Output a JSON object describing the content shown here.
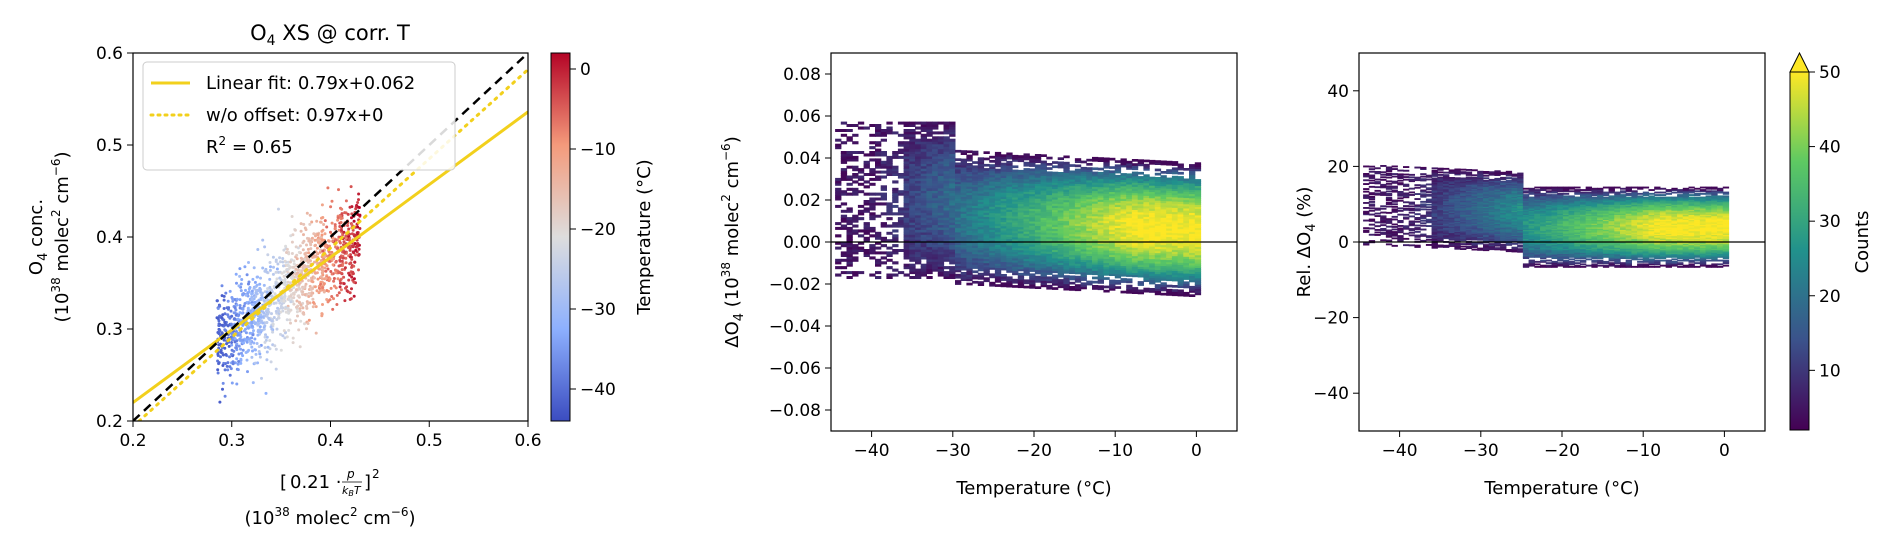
{
  "chart_data": [
    {
      "type": "scatter",
      "title_main": "O",
      "title_sub": "4",
      "title_rest": " XS @ corr. T",
      "xlabel_line2_pre": "(10",
      "xlabel_sup": "38",
      "xlabel_mid": " molec",
      "xlabel_sup2": "2",
      "xlabel_post": " cm",
      "xlabel_sup3": "−6",
      "xlabel_close": ")",
      "ylabel_line1": "O",
      "ylabel_line1_sub": "4",
      "ylabel_line1_rest": " conc.",
      "xlim": [
        0.2,
        0.6
      ],
      "ylim": [
        0.2,
        0.6
      ],
      "xticks": [
        "0.2",
        "0.3",
        "0.4",
        "0.5",
        "0.6"
      ],
      "yticks": [
        "0.2",
        "0.3",
        "0.4",
        "0.5",
        "0.6"
      ],
      "colorbar": {
        "label": "Temperature (°C)",
        "range": [
          -44,
          2
        ],
        "ticks": [
          "0",
          "−10",
          "−20",
          "−30",
          "−40"
        ],
        "tick_values": [
          0,
          -10,
          -20,
          -30,
          -40
        ],
        "colormap": "coolwarm"
      },
      "legend": {
        "position": "top-left",
        "entries": [
          {
            "label": "Linear fit:   0.79x+0.062",
            "style": "solid",
            "color": "#f2d01c"
          },
          {
            "label": "w/o offset: 0.97x+0",
            "style": "dotted",
            "color": "#f2d01c"
          }
        ],
        "r2_label": "R",
        "r2_sup": "2",
        "r2_value": " = 0.65"
      },
      "lines": [
        {
          "name": "Linear fit",
          "slope": 0.79,
          "intercept": 0.062,
          "color": "#f2d01c",
          "style": "solid"
        },
        {
          "name": "w/o offset",
          "slope": 0.97,
          "intercept": 0.0,
          "color": "#f2d01c",
          "style": "dotted"
        },
        {
          "name": "1:1",
          "slope": 1.0,
          "intercept": 0.0,
          "color": "#000000",
          "style": "dashed"
        }
      ],
      "point_cloud": {
        "x_range": [
          0.28,
          0.43
        ],
        "y_range": [
          0.22,
          0.43
        ],
        "temperature_range": [
          -44,
          0
        ]
      }
    },
    {
      "type": "heatmap",
      "xlabel": "Temperature (°C)",
      "ylabel_pre": "ΔO",
      "ylabel_sub": "4",
      "ylabel_mid": " (10",
      "ylabel_sup": "38",
      "ylabel_rest": " molec",
      "ylabel_sup2": "2",
      "ylabel_rest2": " cm",
      "ylabel_sup3": "−6",
      "ylabel_close": ")",
      "xlim": [
        -45,
        5
      ],
      "ylim": [
        -0.09,
        0.09
      ],
      "xticks": [
        "−40",
        "−30",
        "−20",
        "−10",
        "0"
      ],
      "yticks": [
        "0.08",
        "0.06",
        "0.04",
        "0.02",
        "0.00",
        "−0.02",
        "−0.04",
        "−0.06",
        "−0.08"
      ],
      "zero_line": true,
      "density_centers": [
        [
          -15,
          0.01
        ],
        [
          -5,
          0.006
        ]
      ]
    },
    {
      "type": "heatmap",
      "xlabel": "Temperature (°C)",
      "ylabel_pre": "Rel. ΔO",
      "ylabel_sub": "4",
      "ylabel_rest": " (%)",
      "xlim": [
        -45,
        5
      ],
      "ylim": [
        -50,
        50
      ],
      "xticks": [
        "−40",
        "−30",
        "−20",
        "−10",
        "0"
      ],
      "yticks": [
        "40",
        "20",
        "0",
        "−20",
        "−40"
      ],
      "zero_line": true,
      "colorbar": {
        "label": "Counts",
        "range": [
          2,
          50
        ],
        "ticks": [
          "50",
          "40",
          "30",
          "20",
          "10"
        ],
        "tick_values": [
          50,
          40,
          30,
          20,
          10
        ],
        "colormap": "viridis",
        "extend": "max"
      }
    }
  ]
}
